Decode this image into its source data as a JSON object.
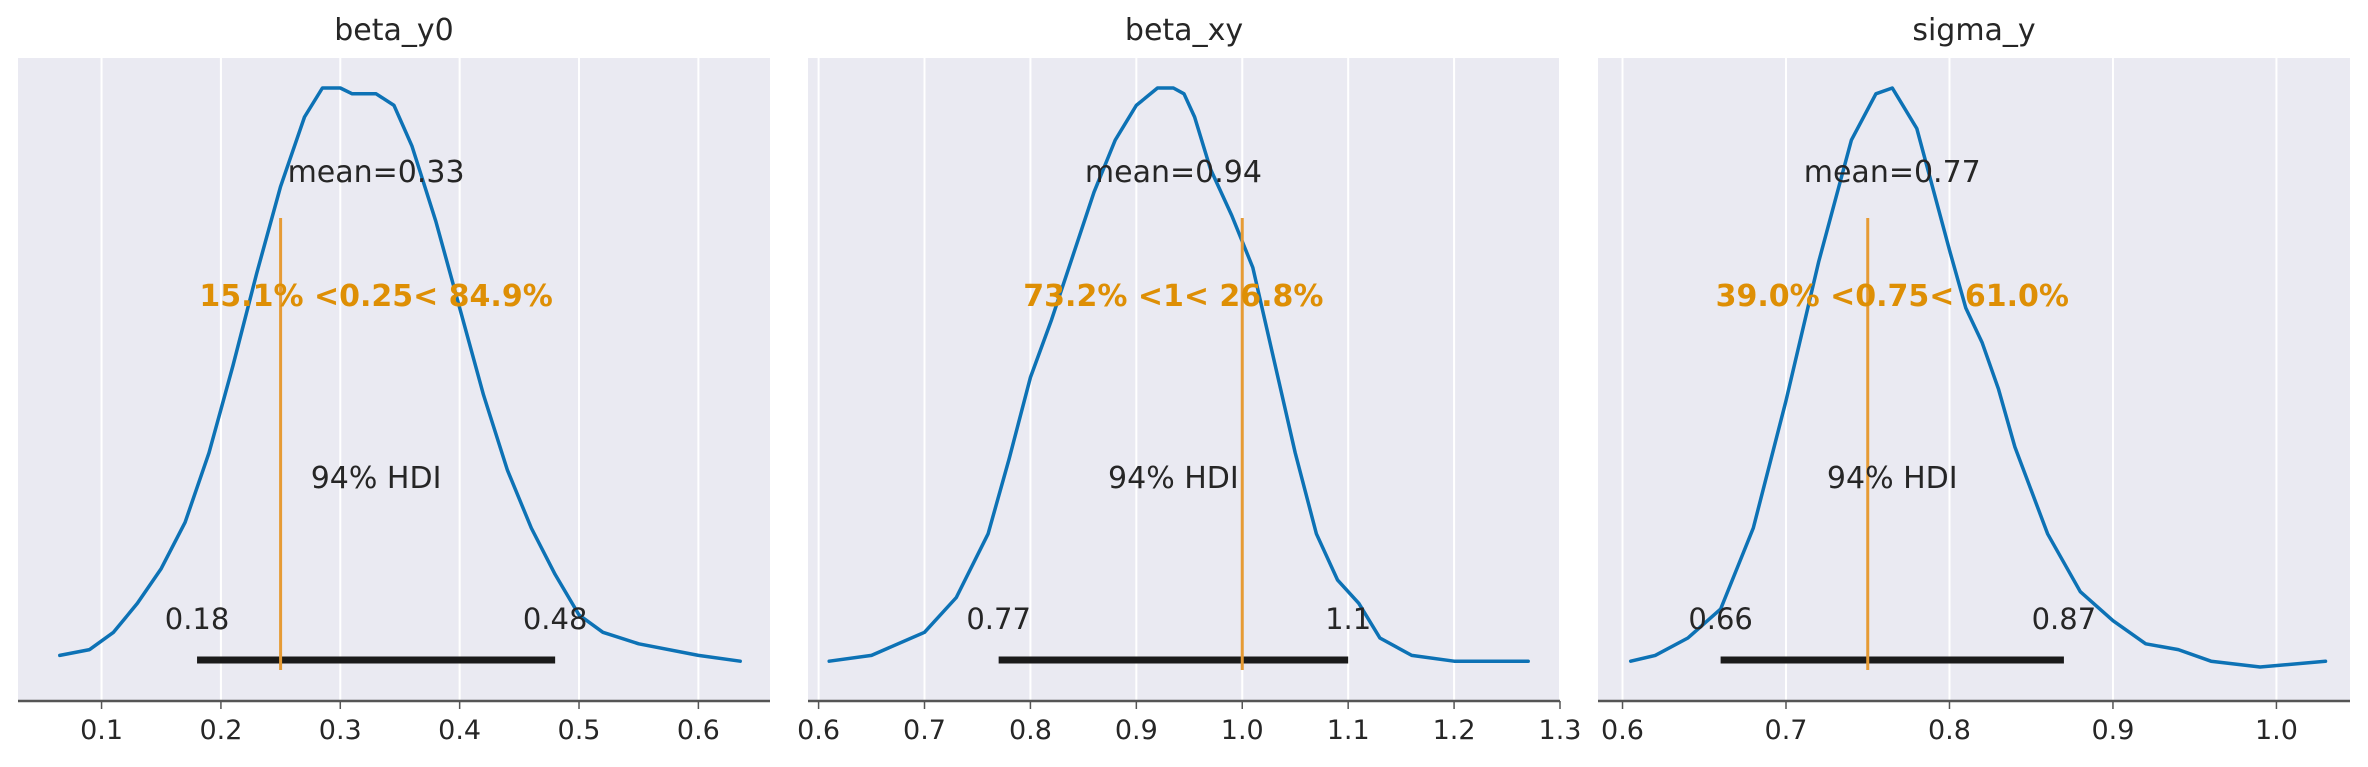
{
  "figure": {
    "background": "#ffffff",
    "panel_background": "#eaeaf2",
    "grid_color": "#ffffff",
    "axis_color": "#555555",
    "text_color": "#262626",
    "density_color": "#1f77b4",
    "density_color_hex": "#0d72b5",
    "hdi_color": "#1a1a1a",
    "ref_color": "#e69b35",
    "ref_text_color": "#de8f05"
  },
  "chart_data": [
    {
      "type": "area",
      "title": "beta_y0",
      "xlim": [
        0.03,
        0.66
      ],
      "xticks": [
        {
          "v": 0.1,
          "label": "0.1"
        },
        {
          "v": 0.2,
          "label": "0.2"
        },
        {
          "v": 0.3,
          "label": "0.3"
        },
        {
          "v": 0.4,
          "label": "0.4"
        },
        {
          "v": 0.5,
          "label": "0.5"
        },
        {
          "v": 0.6,
          "label": "0.6"
        }
      ],
      "density": {
        "x": [
          0.065,
          0.09,
          0.11,
          0.13,
          0.15,
          0.17,
          0.19,
          0.21,
          0.23,
          0.25,
          0.27,
          0.285,
          0.3,
          0.31,
          0.33,
          0.345,
          0.36,
          0.38,
          0.4,
          0.42,
          0.44,
          0.46,
          0.48,
          0.5,
          0.52,
          0.55,
          0.6,
          0.635
        ],
        "y": [
          0.02,
          0.03,
          0.06,
          0.11,
          0.17,
          0.25,
          0.37,
          0.52,
          0.68,
          0.83,
          0.95,
          1.0,
          1.0,
          0.99,
          0.99,
          0.97,
          0.9,
          0.77,
          0.62,
          0.47,
          0.34,
          0.24,
          0.16,
          0.09,
          0.06,
          0.04,
          0.02,
          0.01
        ]
      },
      "mean_label": "mean=0.33",
      "hdi": {
        "low": 0.18,
        "high": 0.48,
        "low_label": "0.18",
        "high_label": "0.48",
        "label": "94% HDI"
      },
      "ref": {
        "value": 0.25,
        "label": "15.1% <0.25< 84.9%"
      }
    },
    {
      "type": "area",
      "title": "beta_xy",
      "xlim": [
        0.59,
        1.3
      ],
      "xticks": [
        {
          "v": 0.6,
          "label": "0.6"
        },
        {
          "v": 0.7,
          "label": "0.7"
        },
        {
          "v": 0.8,
          "label": "0.8"
        },
        {
          "v": 0.9,
          "label": "0.9"
        },
        {
          "v": 1.0,
          "label": "1.0"
        },
        {
          "v": 1.1,
          "label": "1.1"
        },
        {
          "v": 1.2,
          "label": "1.2"
        },
        {
          "v": 1.3,
          "label": "1.3"
        }
      ],
      "density": {
        "x": [
          0.61,
          0.65,
          0.7,
          0.73,
          0.76,
          0.78,
          0.8,
          0.82,
          0.84,
          0.86,
          0.88,
          0.9,
          0.92,
          0.935,
          0.945,
          0.955,
          0.97,
          0.99,
          1.01,
          1.03,
          1.05,
          1.07,
          1.09,
          1.11,
          1.13,
          1.16,
          1.2,
          1.27
        ],
        "y": [
          0.01,
          0.02,
          0.06,
          0.12,
          0.23,
          0.36,
          0.5,
          0.6,
          0.71,
          0.82,
          0.91,
          0.97,
          1.0,
          1.0,
          0.99,
          0.95,
          0.86,
          0.78,
          0.69,
          0.53,
          0.37,
          0.23,
          0.15,
          0.11,
          0.05,
          0.02,
          0.01,
          0.01
        ]
      },
      "mean_label": "mean=0.94",
      "hdi": {
        "low": 0.77,
        "high": 1.1,
        "low_label": "0.77",
        "high_label": "1.1",
        "label": "94% HDI"
      },
      "ref": {
        "value": 1.0,
        "label": "73.2% <1< 26.8%"
      }
    },
    {
      "type": "area",
      "title": "sigma_y",
      "xlim": [
        0.585,
        1.045
      ],
      "xticks": [
        {
          "v": 0.6,
          "label": "0.6"
        },
        {
          "v": 0.7,
          "label": "0.7"
        },
        {
          "v": 0.8,
          "label": "0.8"
        },
        {
          "v": 0.9,
          "label": "0.9"
        },
        {
          "v": 1.0,
          "label": "1.0"
        }
      ],
      "density": {
        "x": [
          0.605,
          0.62,
          0.64,
          0.66,
          0.68,
          0.7,
          0.72,
          0.74,
          0.755,
          0.765,
          0.78,
          0.8,
          0.81,
          0.82,
          0.83,
          0.84,
          0.86,
          0.88,
          0.9,
          0.92,
          0.94,
          0.96,
          0.99,
          1.03
        ],
        "y": [
          0.01,
          0.02,
          0.05,
          0.1,
          0.24,
          0.46,
          0.7,
          0.91,
          0.99,
          1.0,
          0.93,
          0.72,
          0.62,
          0.56,
          0.48,
          0.38,
          0.23,
          0.13,
          0.08,
          0.04,
          0.03,
          0.01,
          0.0,
          0.01
        ]
      },
      "mean_label": "mean=0.77",
      "hdi": {
        "low": 0.66,
        "high": 0.87,
        "low_label": "0.66",
        "high_label": "0.87",
        "label": "94% HDI"
      },
      "ref": {
        "value": 0.75,
        "label": "39.0% <0.75< 61.0%"
      }
    }
  ]
}
